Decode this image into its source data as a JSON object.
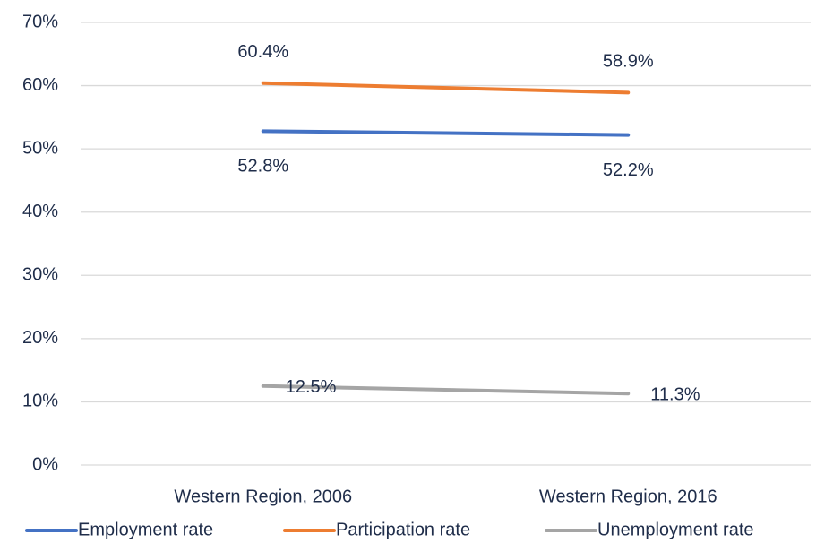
{
  "chart_data": {
    "type": "line",
    "categories": [
      "Western Region, 2006",
      "Western Region, 2016"
    ],
    "series": [
      {
        "name": "Employment rate",
        "color": "#4472c4",
        "values": [
          52.8,
          52.2
        ],
        "value_labels": [
          "52.8%",
          "52.2%"
        ]
      },
      {
        "name": "Participation rate",
        "color": "#ed7d31",
        "values": [
          60.4,
          58.9
        ],
        "value_labels": [
          "60.4%",
          "58.9%"
        ]
      },
      {
        "name": "Unemployment rate",
        "color": "#a5a5a5",
        "values": [
          12.5,
          11.3
        ],
        "value_labels": [
          "12.5%",
          "11.3%"
        ]
      }
    ],
    "ylim": [
      0,
      70
    ],
    "yticks": [
      {
        "value": 0,
        "label": "0%"
      },
      {
        "value": 10,
        "label": "10%"
      },
      {
        "value": 20,
        "label": "20%"
      },
      {
        "value": 30,
        "label": "30%"
      },
      {
        "value": 40,
        "label": "40%"
      },
      {
        "value": 50,
        "label": "50%"
      },
      {
        "value": 60,
        "label": "60%"
      },
      {
        "value": 70,
        "label": "70%"
      }
    ],
    "grid": true,
    "legend": "bottom"
  }
}
